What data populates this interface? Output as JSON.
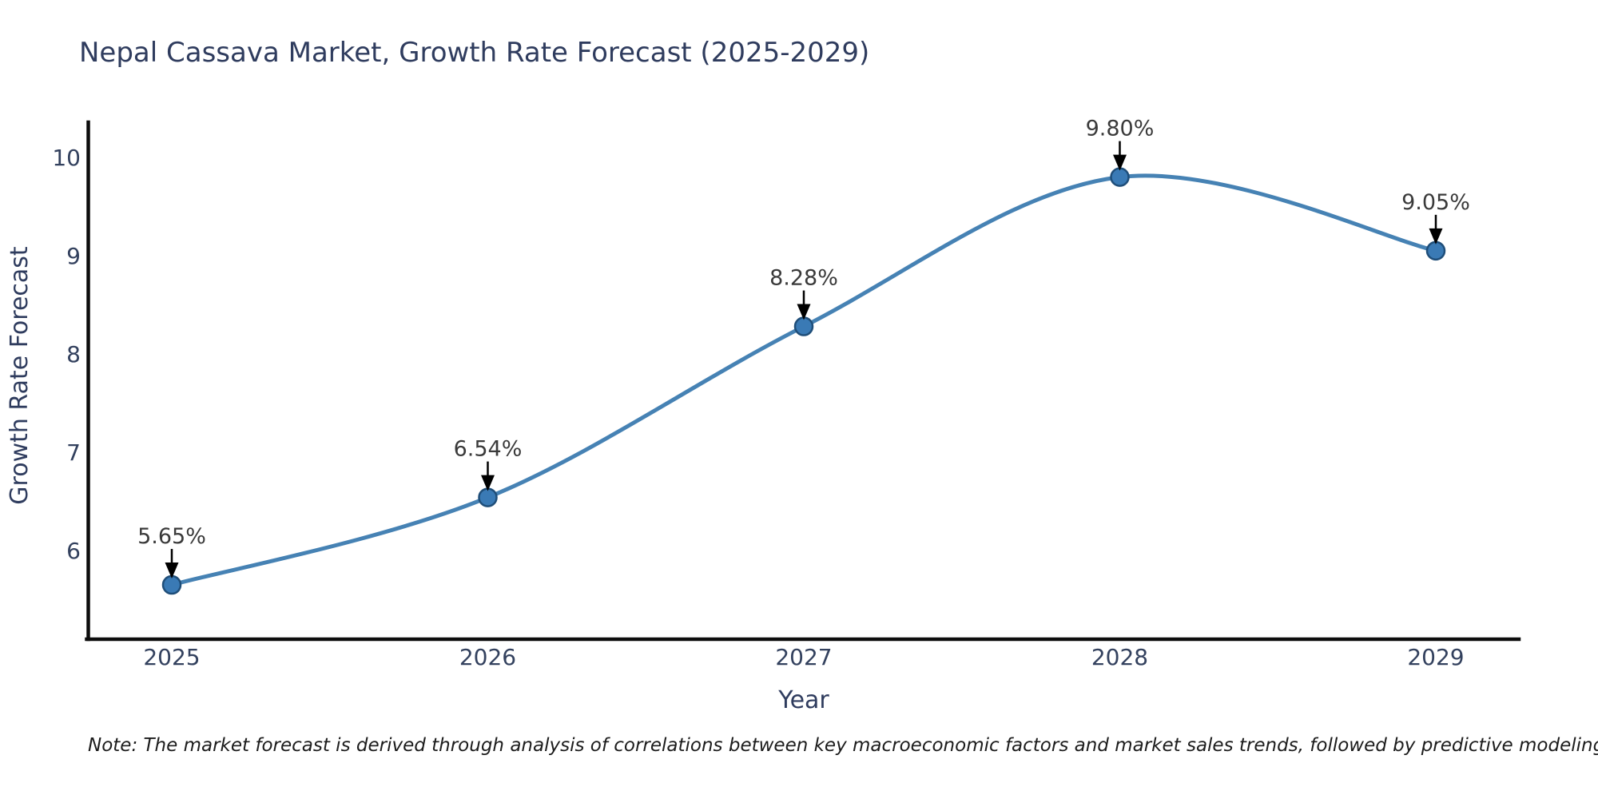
{
  "page": {
    "background": "#ffffff"
  },
  "chart_data": {
    "type": "line",
    "title": "Nepal Cassava Market, Growth Rate Forecast (2025-2029)",
    "xlabel": "Year",
    "ylabel": "Growth Rate Forecast",
    "categories": [
      "2025",
      "2026",
      "2027",
      "2028",
      "2029"
    ],
    "values": [
      5.65,
      6.54,
      8.28,
      9.8,
      9.05
    ],
    "point_labels": [
      "5.65%",
      "6.54%",
      "8.28%",
      "9.80%",
      "9.05%"
    ],
    "yticks": [
      6,
      7,
      8,
      9,
      10
    ],
    "ylim": [
      5.1,
      10.35
    ],
    "line_shape": "spline",
    "grid": "off",
    "legend": "none",
    "note": "Note: The market forecast is derived through analysis of correlations between key macroeconomic factors and market sales trends, followed by predictive modeling to project future sales",
    "colors": {
      "line": "#4682b4",
      "marker_fill": "#3a7ab5",
      "marker_edge": "#1f4e79",
      "annotation_arrow": "#000000",
      "annotation_text": "#3a3a3a",
      "axis_line": "#0d0d0d",
      "axis_text": "#2f3c5e",
      "note_text": "#1c1c1c"
    }
  }
}
